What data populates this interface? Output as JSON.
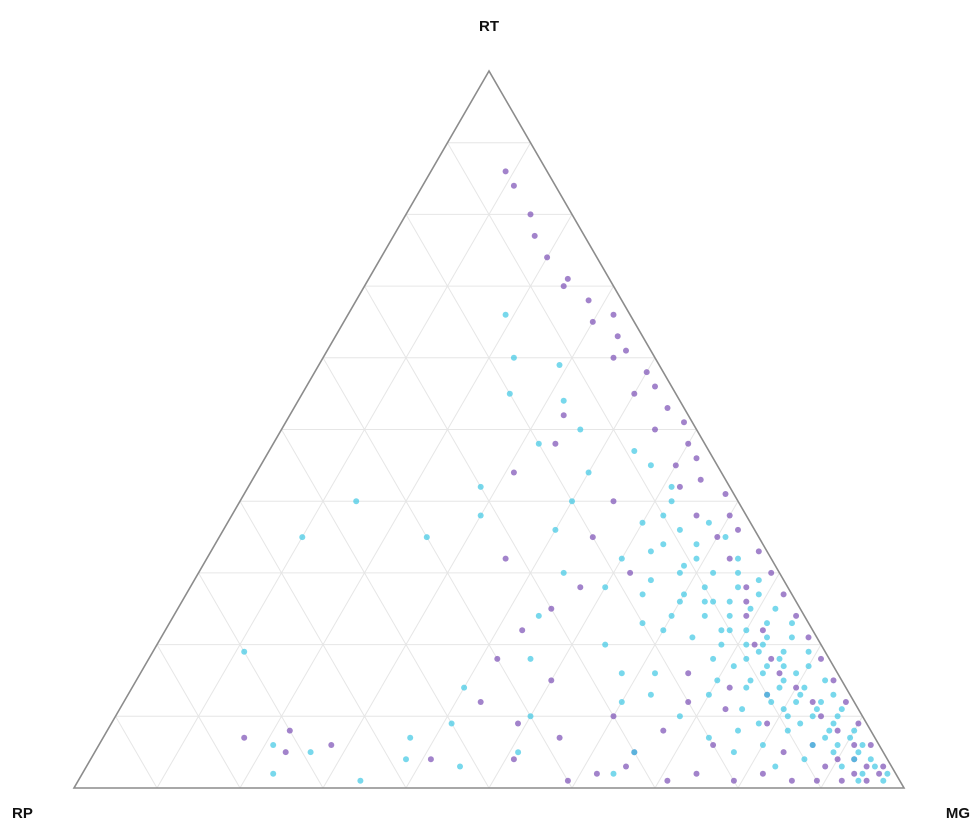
{
  "chart_data": {
    "type": "scatter",
    "subtype": "ternary",
    "title": "",
    "axes": {
      "top": "RT",
      "left": "RP",
      "right": "MG"
    },
    "grid": true,
    "grid_divisions": 10,
    "legend": "none",
    "marker_opacity": 0.7,
    "series": [
      {
        "color": "#7a4fb5",
        "points_rt_rp_mg": [
          [
            0.86,
            0.05,
            0.09
          ],
          [
            0.84,
            0.05,
            0.11
          ],
          [
            0.8,
            0.05,
            0.15
          ],
          [
            0.77,
            0.06,
            0.17
          ],
          [
            0.74,
            0.06,
            0.2
          ],
          [
            0.71,
            0.05,
            0.24
          ],
          [
            0.68,
            0.04,
            0.28
          ],
          [
            0.66,
            0.02,
            0.32
          ],
          [
            0.63,
            0.03,
            0.34
          ],
          [
            0.61,
            0.03,
            0.36
          ],
          [
            0.58,
            0.02,
            0.4
          ],
          [
            0.56,
            0.02,
            0.42
          ],
          [
            0.53,
            0.02,
            0.45
          ],
          [
            0.51,
            0.01,
            0.48
          ],
          [
            0.48,
            0.02,
            0.5
          ],
          [
            0.46,
            0.02,
            0.52
          ],
          [
            0.43,
            0.03,
            0.54
          ],
          [
            0.41,
            0.01,
            0.58
          ],
          [
            0.38,
            0.02,
            0.6
          ],
          [
            0.36,
            0.02,
            0.62
          ],
          [
            0.33,
            0.01,
            0.66
          ],
          [
            0.3,
            0.01,
            0.69
          ],
          [
            0.27,
            0.01,
            0.72
          ],
          [
            0.24,
            0.01,
            0.75
          ],
          [
            0.21,
            0.01,
            0.78
          ],
          [
            0.18,
            0.01,
            0.81
          ],
          [
            0.15,
            0.01,
            0.84
          ],
          [
            0.12,
            0.01,
            0.87
          ],
          [
            0.09,
            0.01,
            0.9
          ],
          [
            0.06,
            0.01,
            0.93
          ],
          [
            0.03,
            0.01,
            0.96
          ],
          [
            0.02,
            0.02,
            0.96
          ],
          [
            0.04,
            0.04,
            0.92
          ],
          [
            0.06,
            0.03,
            0.91
          ],
          [
            0.08,
            0.04,
            0.88
          ],
          [
            0.1,
            0.05,
            0.85
          ],
          [
            0.12,
            0.05,
            0.83
          ],
          [
            0.14,
            0.06,
            0.8
          ],
          [
            0.16,
            0.07,
            0.77
          ],
          [
            0.18,
            0.07,
            0.75
          ],
          [
            0.2,
            0.08,
            0.72
          ],
          [
            0.22,
            0.06,
            0.72
          ],
          [
            0.24,
            0.07,
            0.69
          ],
          [
            0.26,
            0.06,
            0.68
          ],
          [
            0.28,
            0.05,
            0.67
          ],
          [
            0.32,
            0.05,
            0.63
          ],
          [
            0.35,
            0.05,
            0.6
          ],
          [
            0.38,
            0.06,
            0.56
          ],
          [
            0.42,
            0.06,
            0.52
          ],
          [
            0.45,
            0.05,
            0.5
          ],
          [
            0.5,
            0.05,
            0.45
          ],
          [
            0.55,
            0.05,
            0.4
          ],
          [
            0.6,
            0.05,
            0.35
          ],
          [
            0.65,
            0.05,
            0.3
          ],
          [
            0.7,
            0.06,
            0.24
          ],
          [
            0.01,
            0.04,
            0.95
          ],
          [
            0.01,
            0.07,
            0.92
          ],
          [
            0.01,
            0.1,
            0.89
          ],
          [
            0.01,
            0.13,
            0.86
          ],
          [
            0.02,
            0.16,
            0.82
          ],
          [
            0.01,
            0.2,
            0.79
          ],
          [
            0.02,
            0.24,
            0.74
          ],
          [
            0.01,
            0.28,
            0.71
          ],
          [
            0.03,
            0.32,
            0.65
          ],
          [
            0.02,
            0.36,
            0.62
          ],
          [
            0.01,
            0.4,
            0.59
          ],
          [
            0.04,
            0.45,
            0.51
          ],
          [
            0.06,
            0.2,
            0.74
          ],
          [
            0.08,
            0.25,
            0.67
          ],
          [
            0.05,
            0.3,
            0.65
          ],
          [
            0.1,
            0.3,
            0.6
          ],
          [
            0.07,
            0.38,
            0.55
          ],
          [
            0.09,
            0.42,
            0.49
          ],
          [
            0.12,
            0.45,
            0.43
          ],
          [
            0.04,
            0.55,
            0.41
          ],
          [
            0.06,
            0.66,
            0.28
          ],
          [
            0.08,
            0.7,
            0.22
          ],
          [
            0.05,
            0.72,
            0.23
          ],
          [
            0.07,
            0.76,
            0.17
          ],
          [
            0.15,
            0.35,
            0.5
          ],
          [
            0.18,
            0.4,
            0.42
          ],
          [
            0.22,
            0.35,
            0.43
          ],
          [
            0.25,
            0.3,
            0.45
          ],
          [
            0.28,
            0.25,
            0.47
          ],
          [
            0.3,
            0.18,
            0.52
          ],
          [
            0.35,
            0.2,
            0.45
          ],
          [
            0.4,
            0.15,
            0.45
          ],
          [
            0.44,
            0.25,
            0.31
          ],
          [
            0.48,
            0.18,
            0.34
          ],
          [
            0.52,
            0.15,
            0.33
          ],
          [
            0.32,
            0.32,
            0.36
          ],
          [
            0.12,
            0.2,
            0.68
          ],
          [
            0.14,
            0.14,
            0.72
          ],
          [
            0.16,
            0.18,
            0.66
          ],
          [
            0.09,
            0.12,
            0.79
          ],
          [
            0.11,
            0.16,
            0.73
          ],
          [
            0.13,
            0.1,
            0.77
          ],
          [
            0.03,
            0.08,
            0.89
          ],
          [
            0.05,
            0.12,
            0.83
          ],
          [
            0.02,
            0.05,
            0.93
          ],
          [
            0.03,
            0.03,
            0.94
          ],
          [
            0.04,
            0.06,
            0.9
          ],
          [
            0.06,
            0.08,
            0.86
          ]
        ]
      },
      {
        "color": "#3ec7e4",
        "points_rt_rp_mg": [
          [
            0.66,
            0.15,
            0.19
          ],
          [
            0.6,
            0.17,
            0.23
          ],
          [
            0.59,
            0.12,
            0.29
          ],
          [
            0.55,
            0.2,
            0.25
          ],
          [
            0.54,
            0.14,
            0.32
          ],
          [
            0.5,
            0.14,
            0.36
          ],
          [
            0.48,
            0.2,
            0.32
          ],
          [
            0.44,
            0.16,
            0.4
          ],
          [
            0.42,
            0.3,
            0.28
          ],
          [
            0.4,
            0.2,
            0.4
          ],
          [
            0.38,
            0.32,
            0.3
          ],
          [
            0.36,
            0.24,
            0.4
          ],
          [
            0.35,
            0.4,
            0.25
          ],
          [
            0.32,
            0.18,
            0.5
          ],
          [
            0.3,
            0.26,
            0.44
          ],
          [
            0.28,
            0.22,
            0.5
          ],
          [
            0.26,
            0.14,
            0.6
          ],
          [
            0.24,
            0.32,
            0.44
          ],
          [
            0.22,
            0.18,
            0.6
          ],
          [
            0.2,
            0.26,
            0.54
          ],
          [
            0.18,
            0.36,
            0.46
          ],
          [
            0.16,
            0.22,
            0.62
          ],
          [
            0.14,
            0.46,
            0.4
          ],
          [
            0.12,
            0.28,
            0.6
          ],
          [
            0.1,
            0.4,
            0.5
          ],
          [
            0.09,
            0.5,
            0.41
          ],
          [
            0.07,
            0.56,
            0.37
          ],
          [
            0.05,
            0.44,
            0.51
          ],
          [
            0.04,
            0.58,
            0.38
          ],
          [
            0.03,
            0.52,
            0.45
          ],
          [
            0.02,
            0.34,
            0.64
          ],
          [
            0.05,
            0.3,
            0.65
          ],
          [
            0.05,
            0.69,
            0.26
          ],
          [
            0.06,
            0.73,
            0.21
          ],
          [
            0.02,
            0.75,
            0.23
          ],
          [
            0.01,
            0.65,
            0.34
          ],
          [
            0.19,
            0.7,
            0.11
          ],
          [
            0.35,
            0.55,
            0.1
          ],
          [
            0.4,
            0.46,
            0.14
          ],
          [
            0.45,
            0.08,
            0.47
          ],
          [
            0.4,
            0.08,
            0.52
          ],
          [
            0.38,
            0.1,
            0.52
          ],
          [
            0.36,
            0.09,
            0.55
          ],
          [
            0.34,
            0.08,
            0.58
          ],
          [
            0.32,
            0.09,
            0.59
          ],
          [
            0.3,
            0.08,
            0.62
          ],
          [
            0.3,
            0.12,
            0.58
          ],
          [
            0.28,
            0.1,
            0.62
          ],
          [
            0.28,
            0.06,
            0.66
          ],
          [
            0.26,
            0.08,
            0.66
          ],
          [
            0.26,
            0.11,
            0.63
          ],
          [
            0.25,
            0.06,
            0.69
          ],
          [
            0.24,
            0.09,
            0.67
          ],
          [
            0.24,
            0.12,
            0.64
          ],
          [
            0.23,
            0.05,
            0.72
          ],
          [
            0.22,
            0.08,
            0.7
          ],
          [
            0.22,
            0.11,
            0.67
          ],
          [
            0.21,
            0.06,
            0.73
          ],
          [
            0.2,
            0.09,
            0.71
          ],
          [
            0.2,
            0.12,
            0.68
          ],
          [
            0.19,
            0.05,
            0.76
          ],
          [
            0.19,
            0.08,
            0.73
          ],
          [
            0.18,
            0.1,
            0.72
          ],
          [
            0.18,
            0.06,
            0.76
          ],
          [
            0.17,
            0.08,
            0.75
          ],
          [
            0.17,
            0.12,
            0.71
          ],
          [
            0.16,
            0.05,
            0.79
          ],
          [
            0.16,
            0.09,
            0.75
          ],
          [
            0.15,
            0.07,
            0.78
          ],
          [
            0.15,
            0.11,
            0.74
          ],
          [
            0.14,
            0.05,
            0.81
          ],
          [
            0.14,
            0.08,
            0.78
          ],
          [
            0.13,
            0.06,
            0.81
          ],
          [
            0.13,
            0.1,
            0.77
          ],
          [
            0.12,
            0.04,
            0.84
          ],
          [
            0.12,
            0.07,
            0.81
          ],
          [
            0.11,
            0.05,
            0.84
          ],
          [
            0.11,
            0.09,
            0.8
          ],
          [
            0.1,
            0.03,
            0.87
          ],
          [
            0.1,
            0.06,
            0.84
          ],
          [
            0.09,
            0.04,
            0.87
          ],
          [
            0.09,
            0.08,
            0.83
          ],
          [
            0.08,
            0.02,
            0.9
          ],
          [
            0.08,
            0.05,
            0.87
          ],
          [
            0.07,
            0.03,
            0.9
          ],
          [
            0.07,
            0.06,
            0.87
          ],
          [
            0.06,
            0.02,
            0.92
          ],
          [
            0.06,
            0.05,
            0.89
          ],
          [
            0.05,
            0.03,
            0.92
          ],
          [
            0.05,
            0.06,
            0.89
          ],
          [
            0.04,
            0.02,
            0.94
          ],
          [
            0.04,
            0.04,
            0.92
          ],
          [
            0.03,
            0.02,
            0.95
          ],
          [
            0.02,
            0.01,
            0.97
          ],
          [
            0.01,
            0.02,
            0.97
          ],
          [
            0.32,
            0.04,
            0.64
          ],
          [
            0.3,
            0.05,
            0.65
          ],
          [
            0.29,
            0.03,
            0.68
          ],
          [
            0.27,
            0.04,
            0.69
          ],
          [
            0.25,
            0.03,
            0.72
          ],
          [
            0.23,
            0.02,
            0.75
          ],
          [
            0.21,
            0.03,
            0.76
          ],
          [
            0.19,
            0.02,
            0.79
          ],
          [
            0.17,
            0.03,
            0.8
          ],
          [
            0.15,
            0.02,
            0.83
          ],
          [
            0.13,
            0.02,
            0.85
          ],
          [
            0.11,
            0.02,
            0.87
          ],
          [
            0.35,
            0.04,
            0.61
          ],
          [
            0.37,
            0.05,
            0.58
          ],
          [
            0.42,
            0.07,
            0.51
          ],
          [
            0.47,
            0.09,
            0.44
          ],
          [
            0.33,
            0.14,
            0.53
          ],
          [
            0.29,
            0.16,
            0.55
          ],
          [
            0.27,
            0.18,
            0.55
          ],
          [
            0.24,
            0.16,
            0.6
          ],
          [
            0.21,
            0.15,
            0.64
          ],
          [
            0.18,
            0.14,
            0.68
          ],
          [
            0.15,
            0.15,
            0.7
          ],
          [
            0.13,
            0.17,
            0.7
          ],
          [
            0.11,
            0.14,
            0.75
          ],
          [
            0.09,
            0.13,
            0.78
          ],
          [
            0.08,
            0.16,
            0.76
          ],
          [
            0.06,
            0.14,
            0.8
          ],
          [
            0.05,
            0.18,
            0.77
          ],
          [
            0.04,
            0.1,
            0.86
          ],
          [
            0.03,
            0.14,
            0.83
          ],
          [
            0.07,
            0.2,
            0.73
          ],
          [
            0.1,
            0.22,
            0.68
          ],
          [
            0.13,
            0.24,
            0.63
          ],
          [
            0.16,
            0.26,
            0.58
          ],
          [
            0.23,
            0.2,
            0.57
          ],
          [
            0.27,
            0.13,
            0.6
          ],
          [
            0.31,
            0.11,
            0.58
          ],
          [
            0.34,
            0.12,
            0.54
          ],
          [
            0.37,
            0.13,
            0.5
          ],
          [
            0.26,
            0.1,
            0.64
          ],
          [
            0.22,
            0.1,
            0.68
          ],
          [
            0.2,
            0.07,
            0.73
          ],
          [
            0.17,
            0.06,
            0.77
          ],
          [
            0.14,
            0.12,
            0.74
          ],
          [
            0.12,
            0.1,
            0.78
          ],
          [
            0.1,
            0.09,
            0.81
          ],
          [
            0.08,
            0.1,
            0.82
          ],
          [
            0.06,
            0.08,
            0.86
          ],
          [
            0.03,
            0.06,
            0.91
          ],
          [
            0.02,
            0.04,
            0.94
          ],
          [
            0.01,
            0.05,
            0.94
          ]
        ]
      }
    ]
  }
}
